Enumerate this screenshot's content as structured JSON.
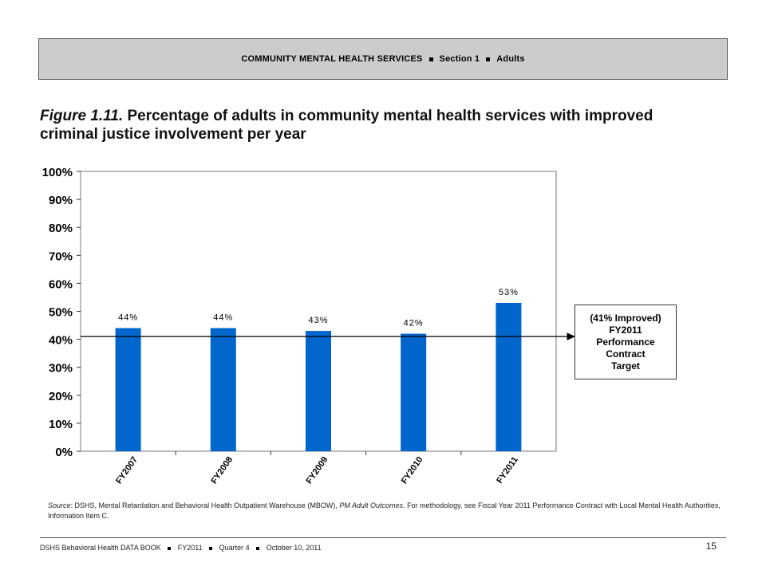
{
  "header": {
    "part1": "COMMUNITY MENTAL HEALTH SERVICES",
    "part2": "Section 1",
    "part3": "Adults"
  },
  "figure": {
    "label": "Figure 1.11.",
    "title": "Percentage of adults in community mental health services with improved criminal justice involvement per year"
  },
  "chart_data": {
    "type": "bar",
    "categories": [
      "FY2007",
      "FY2008",
      "FY2009",
      "FY2010",
      "FY2011"
    ],
    "values": [
      44,
      44,
      43,
      42,
      53
    ],
    "data_labels": [
      "44%",
      "44%",
      "43%",
      "42%",
      "53%"
    ],
    "ylim": [
      0,
      100
    ],
    "yticks": [
      "0%",
      "10%",
      "20%",
      "30%",
      "40%",
      "50%",
      "60%",
      "70%",
      "80%",
      "90%",
      "100%"
    ],
    "bar_color": "#0066cc",
    "grid": false,
    "target_value": 41,
    "target_label": [
      "(41% Improved)",
      "FY2011",
      "Performance",
      "Contract",
      "Target"
    ]
  },
  "source": {
    "label": "Source",
    "text1": ": DSHS, Mental Retardation and Behavioral Health Outpatient Warehouse (MBOW), ",
    "italic": "PM Adult Outcomes",
    "text2": ". For methodology, see Fiscal Year 2011 Performance Contract with Local Mental Health Authorities, Information Item C."
  },
  "footer": {
    "part1": "DSHS Behavioral Health DATA BOOK",
    "part2": "FY2011",
    "part3": "Quarter 4",
    "part4": "October 10, 2011",
    "page_number": "15"
  }
}
